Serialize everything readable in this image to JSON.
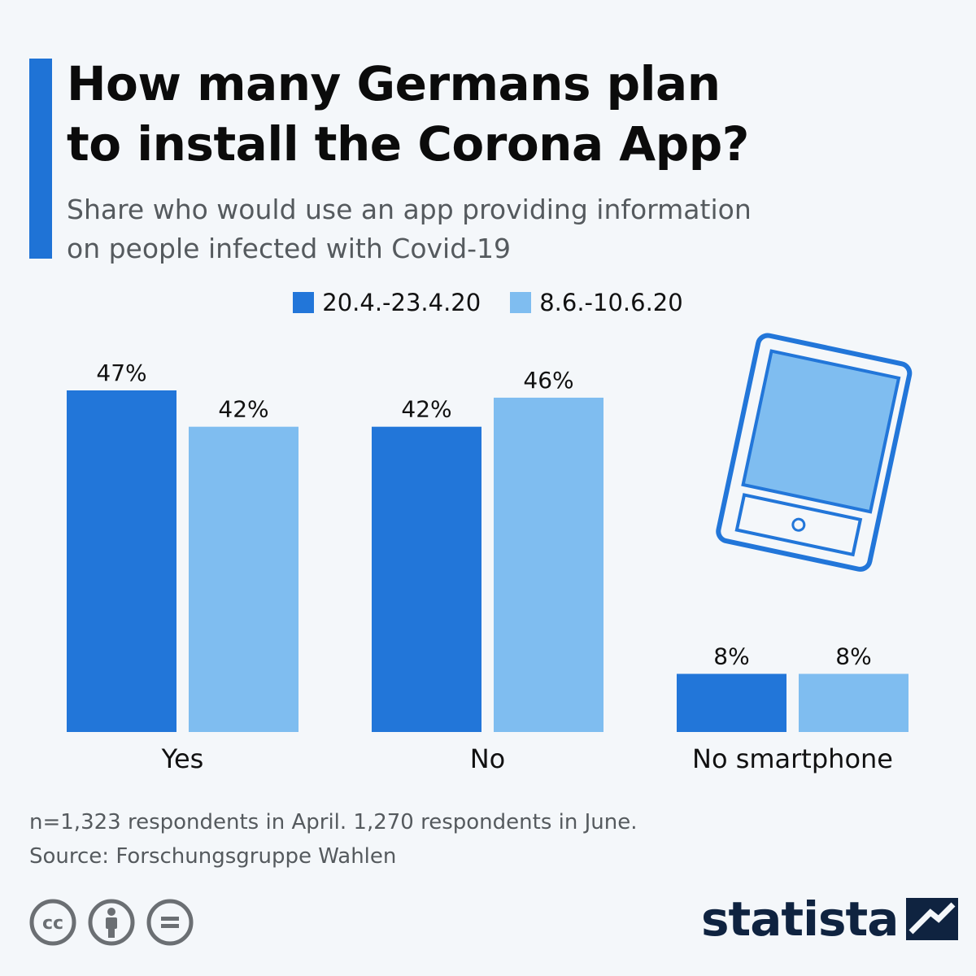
{
  "title": {
    "line1": "How many Germans plan",
    "line2": "to install the Corona App?"
  },
  "subtitle": {
    "line1": "Share who would use an app providing information",
    "line2": "on people infected with Covid-19"
  },
  "colors": {
    "accent": "#1f73d6",
    "series1": "#2276d9",
    "series2": "#7fbdf0",
    "icon_stroke": "#2276d9",
    "icon_fill": "#7fbdf0",
    "brand": "#0f2340"
  },
  "chart_data": {
    "type": "bar",
    "categories": [
      "Yes",
      "No",
      "No smartphone"
    ],
    "series": [
      {
        "name": "20.4.-23.4.20",
        "values": [
          47,
          42,
          8
        ]
      },
      {
        "name": "8.6.-10.6.20",
        "values": [
          42,
          46,
          8
        ]
      }
    ],
    "value_labels": [
      [
        "47%",
        "42%",
        "8%"
      ],
      [
        "42%",
        "46%",
        "8%"
      ]
    ],
    "title": "How many Germans plan to install the Corona App?",
    "xlabel": "",
    "ylabel": "",
    "ylim": [
      0,
      47
    ],
    "grid": false,
    "legend": "top-center"
  },
  "icons": {
    "tablet": "tablet-icon",
    "cc": "cc-icon",
    "attribution": "attribution-icon",
    "no_derivatives": "equals-icon",
    "brand_logo": "statista-logo-icon"
  },
  "footnote": {
    "line1": "n=1,323 respondents in April. 1,270 respondents in June.",
    "line2": "Source: Forschungsgruppe Wahlen"
  },
  "brand": {
    "name": "statista"
  },
  "license": {
    "cc": "cc"
  }
}
